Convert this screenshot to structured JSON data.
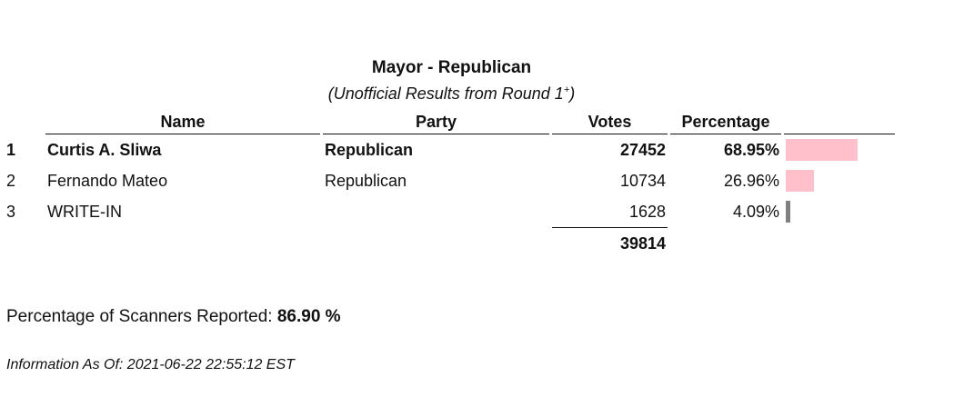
{
  "contest": {
    "title": "Mayor - Republican",
    "subtitle_text": "(Unofficial Results from Round 1",
    "subtitle_sup": "+",
    "subtitle_close": ")"
  },
  "table": {
    "headers": {
      "name": "Name",
      "party": "Party",
      "votes": "Votes",
      "percentage": "Percentage"
    },
    "rows": [
      {
        "rank": "1",
        "name": "Curtis A. Sliwa",
        "party": "Republican",
        "votes": "27452",
        "percentage": "68.95%",
        "share": 0.6895,
        "bar_color": "#ffc0cb"
      },
      {
        "rank": "2",
        "name": "Fernando Mateo",
        "party": "Republican",
        "votes": "10734",
        "percentage": "26.96%",
        "share": 0.2696,
        "bar_color": "#ffc0cb"
      },
      {
        "rank": "3",
        "name": "WRITE-IN",
        "party": "",
        "votes": "1628",
        "percentage": "4.09%",
        "share": 0.0409,
        "bar_color": "#808080"
      }
    ],
    "total_votes": "39814"
  },
  "scanners": {
    "label": "Percentage of Scanners Reported: ",
    "value": "86.90 %"
  },
  "info": {
    "as_of": "Information As Of: 2021-06-22 22:55:12 EST"
  }
}
